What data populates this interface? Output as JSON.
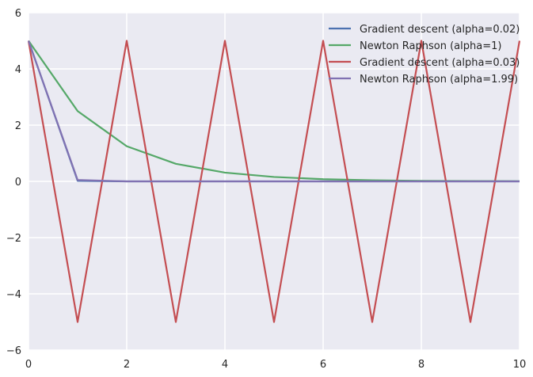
{
  "chart_data": {
    "type": "line",
    "title": "",
    "xlabel": "",
    "ylabel": "",
    "xlim": [
      0,
      10
    ],
    "ylim": [
      -6,
      6
    ],
    "xticks": [
      0,
      2,
      4,
      6,
      8,
      10
    ],
    "yticks": [
      -6,
      -4,
      -2,
      0,
      2,
      4,
      6
    ],
    "grid": true,
    "legend_position": "top-right",
    "background": "#EAEAF2",
    "series": [
      {
        "name": "Gradient descent (alpha=0.02)",
        "color": "#4C72B0",
        "x": [
          0,
          1,
          2,
          3,
          4,
          5,
          6,
          7,
          8,
          9,
          10
        ],
        "y": [
          5,
          0.02,
          0.0001,
          0,
          0,
          0,
          0,
          0,
          0,
          0,
          0
        ]
      },
      {
        "name": "Newton Raphson (alpha=1)",
        "color": "#55A868",
        "x": [
          0,
          1,
          2,
          3,
          4,
          5,
          6,
          7,
          8,
          9,
          10
        ],
        "y": [
          5,
          2.5,
          1.25,
          0.625,
          0.3125,
          0.15625,
          0.078125,
          0.0390625,
          0.01953125,
          0.009765625,
          0.0048828125
        ]
      },
      {
        "name": "Gradient descent (alpha=0.03)",
        "color": "#C44E52",
        "x": [
          0,
          1,
          2,
          3,
          4,
          5,
          6,
          7,
          8,
          9,
          10
        ],
        "y": [
          5,
          -5,
          5,
          -5,
          5,
          -5,
          5,
          -5,
          5,
          -5,
          5
        ]
      },
      {
        "name": "Newton Raphson (alpha=1.99)",
        "color": "#8172B2",
        "x": [
          0,
          1,
          2,
          3,
          4,
          5,
          6,
          7,
          8,
          9,
          10
        ],
        "y": [
          5,
          0.05,
          0.0005,
          0,
          0,
          0,
          0,
          0,
          0,
          0,
          0
        ]
      }
    ]
  }
}
